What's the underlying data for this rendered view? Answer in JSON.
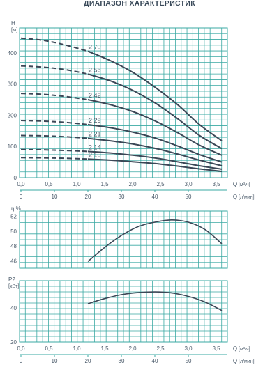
{
  "page": {
    "title": "ДИАПАЗОН ХАРАКТЕРИСТИК"
  },
  "colors": {
    "grid": "#3aa9a3",
    "curve": "#3b4756",
    "text": "#4a5a6a"
  },
  "chart_data": [
    {
      "type": "line",
      "name": "head",
      "ylabel": "H",
      "yunit": "[м]",
      "xlabel": "Q",
      "xunit": "[м³/ч]",
      "xlim": [
        0,
        3.6
      ],
      "ylim": [
        0,
        480
      ],
      "xticks": [
        0,
        0.5,
        1.0,
        1.5,
        2.0,
        2.5,
        3.0,
        3.5
      ],
      "xticklabels": [
        "0,0",
        "0,5",
        "1,0",
        "1,5",
        "2,0",
        "2,5",
        "3,0",
        "3,5"
      ],
      "yticks": [
        0,
        100,
        200,
        300,
        400
      ],
      "yticklabels": [
        "0",
        "100",
        "200",
        "300",
        "400"
      ],
      "grid": true,
      "x2label": "Q",
      "x2unit": "[л/мин]",
      "x2ticks": [
        0,
        10,
        20,
        30,
        40,
        50
      ],
      "x2ticklabels": [
        "0",
        "10",
        "20",
        "30",
        "40",
        "50"
      ],
      "dashed_until_x": 1.2,
      "series": [
        {
          "name": "2 70",
          "x": [
            0,
            0.4,
            0.8,
            1.2,
            1.6,
            2.0,
            2.4,
            2.8,
            3.2,
            3.6
          ],
          "y": [
            447,
            440,
            425,
            405,
            375,
            338,
            290,
            235,
            170,
            118
          ]
        },
        {
          "name": "2 56",
          "x": [
            0,
            0.4,
            0.8,
            1.2,
            1.6,
            2.0,
            2.4,
            2.8,
            3.2,
            3.6
          ],
          "y": [
            358,
            354,
            346,
            332,
            310,
            280,
            240,
            190,
            135,
            93
          ]
        },
        {
          "name": "2 42",
          "x": [
            0,
            0.4,
            0.8,
            1.2,
            1.6,
            2.0,
            2.4,
            2.8,
            3.2,
            3.6
          ],
          "y": [
            270,
            267,
            260,
            250,
            234,
            212,
            182,
            145,
            104,
            72
          ]
        },
        {
          "name": "2 29",
          "x": [
            0,
            0.4,
            0.8,
            1.2,
            1.6,
            2.0,
            2.4,
            2.8,
            3.2,
            3.6
          ],
          "y": [
            183,
            181,
            177,
            170,
            160,
            146,
            127,
            102,
            74,
            50
          ]
        },
        {
          "name": "2 21",
          "x": [
            0,
            0.4,
            0.8,
            1.2,
            1.6,
            2.0,
            2.4,
            2.8,
            3.2,
            3.6
          ],
          "y": [
            135,
            134,
            131,
            126,
            118,
            108,
            94,
            76,
            56,
            38
          ]
        },
        {
          "name": "2 14",
          "x": [
            0,
            0.4,
            0.8,
            1.2,
            1.6,
            2.0,
            2.4,
            2.8,
            3.2,
            3.6
          ],
          "y": [
            90,
            89,
            87,
            84,
            79,
            72,
            63,
            51,
            38,
            27
          ]
        },
        {
          "name": "2 10",
          "x": [
            0,
            0.4,
            0.8,
            1.2,
            1.6,
            2.0,
            2.4,
            2.8,
            3.2,
            3.6
          ],
          "y": [
            64,
            63.5,
            62,
            59.5,
            56,
            51,
            45,
            37,
            28,
            20
          ]
        }
      ]
    },
    {
      "type": "line",
      "name": "efficiency",
      "ylabel": "η %",
      "xlim": [
        0,
        3.6
      ],
      "ylim": [
        45,
        52.7
      ],
      "yticks": [
        46,
        48,
        50,
        52
      ],
      "yticklabels": [
        "46",
        "48",
        "50",
        "52"
      ],
      "grid": true,
      "series": [
        {
          "x": [
            1.2,
            1.5,
            1.8,
            2.1,
            2.4,
            2.7,
            3.0,
            3.3,
            3.6
          ],
          "y": [
            45.9,
            47.8,
            49.4,
            50.6,
            51.2,
            51.5,
            51.2,
            50.2,
            48.3
          ]
        }
      ]
    },
    {
      "type": "line",
      "name": "power",
      "ylabel": "P2",
      "yunit": "[кВт]",
      "xlabel": "Q",
      "xunit": "[м³/ч]",
      "xlim": [
        0,
        3.6
      ],
      "ylim": [
        20,
        56
      ],
      "xticks": [
        0,
        0.5,
        1.0,
        1.5,
        2.0,
        2.5,
        3.0,
        3.5
      ],
      "xticklabels": [
        "0,0",
        "0,5",
        "1,0",
        "1,5",
        "2,0",
        "2,5",
        "3,0",
        "3,5"
      ],
      "yticks": [
        20,
        40
      ],
      "yticklabels": [
        "20",
        "40"
      ],
      "grid": true,
      "x2label": "Q",
      "x2unit": "[л/мин]",
      "x2ticks": [
        0,
        10,
        20,
        30,
        40,
        50
      ],
      "x2ticklabels": [
        "0",
        "10",
        "20",
        "30",
        "40",
        "50"
      ],
      "series": [
        {
          "x": [
            1.2,
            1.5,
            1.8,
            2.1,
            2.4,
            2.7,
            3.0,
            3.3,
            3.6
          ],
          "y": [
            42.5,
            45.5,
            47.8,
            49.0,
            49.4,
            48.8,
            46.8,
            43.5,
            38.5
          ]
        }
      ]
    }
  ]
}
